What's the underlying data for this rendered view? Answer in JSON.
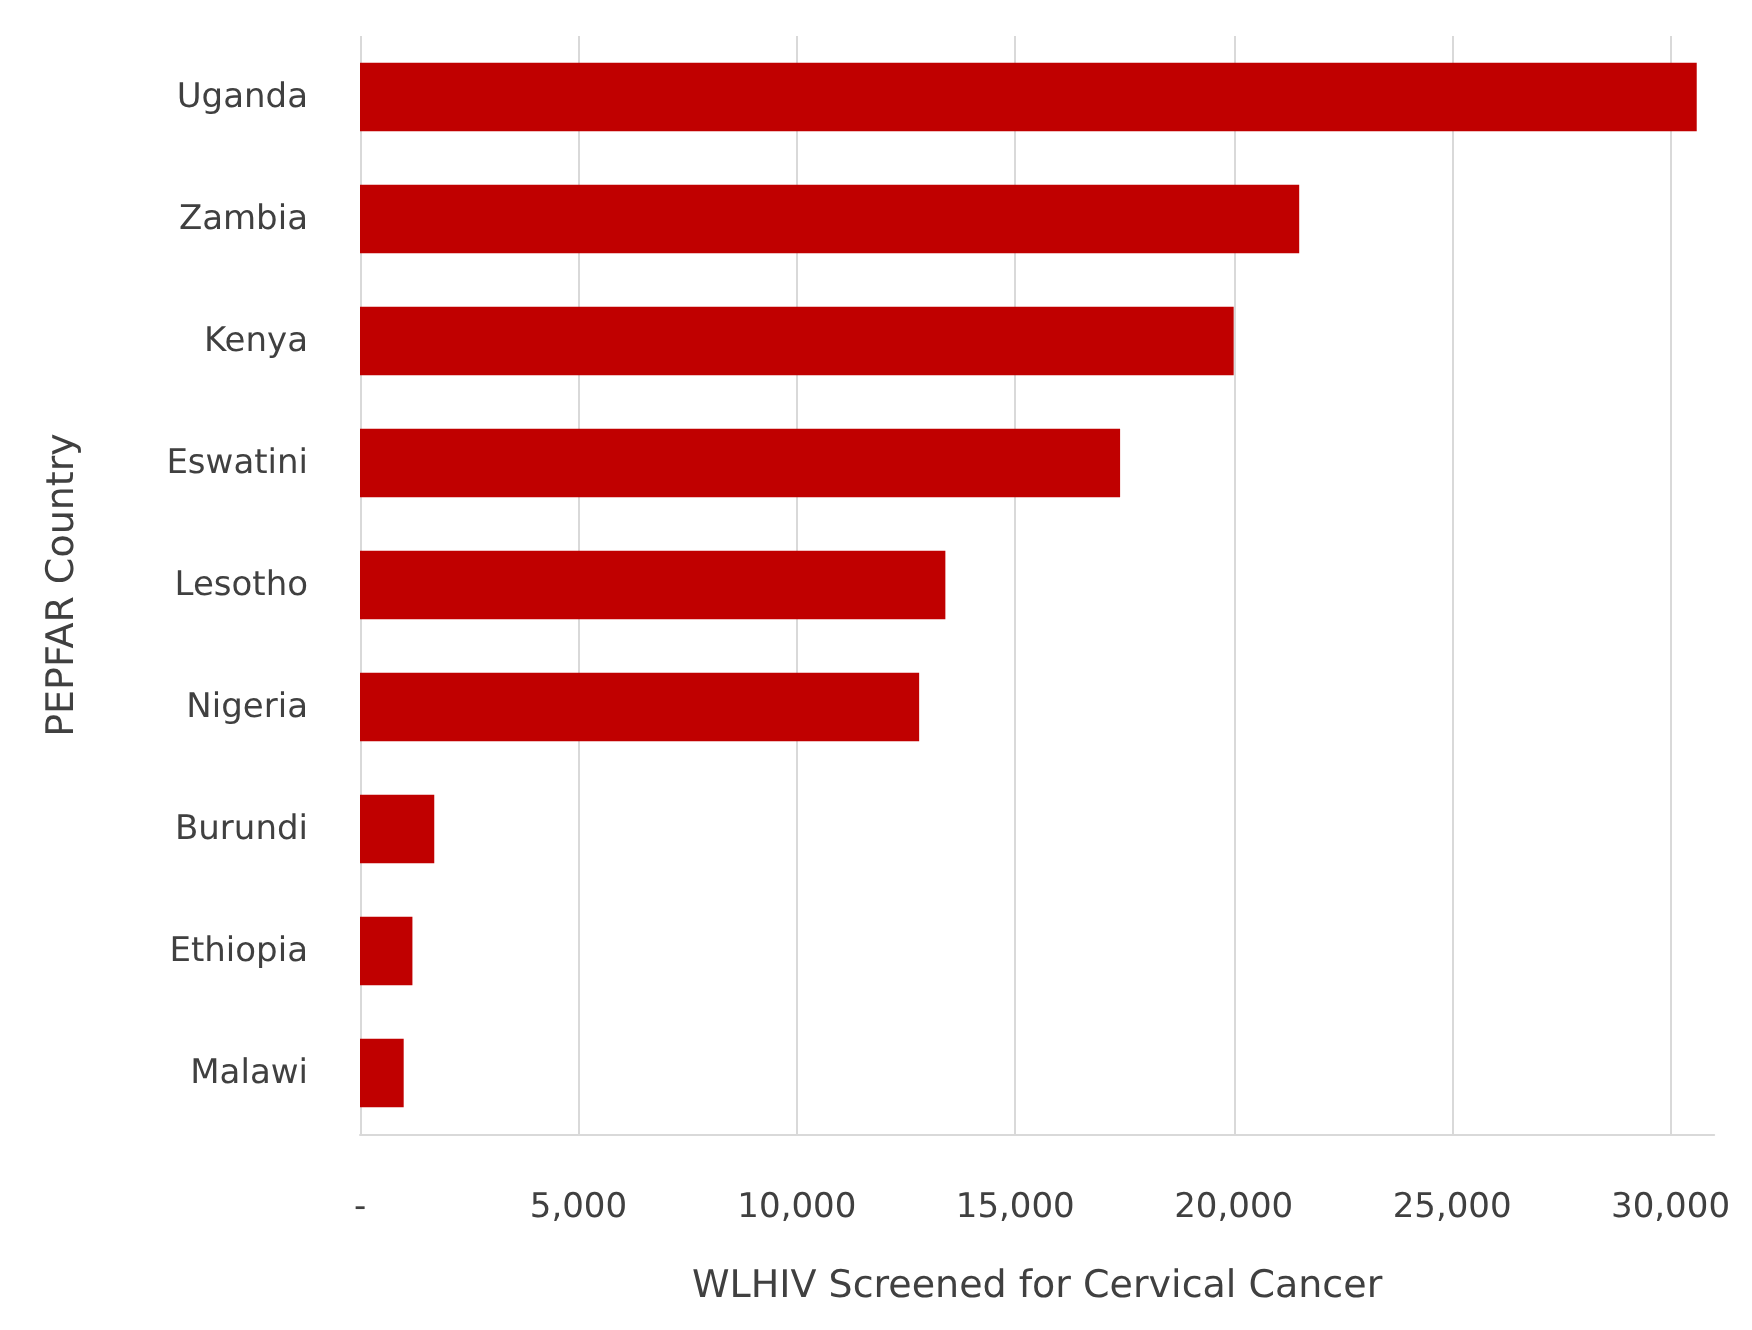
{
  "chart_data": {
    "type": "bar",
    "orientation": "horizontal",
    "xlabel": "WLHIV Screened for Cervical Cancer",
    "ylabel": "PEPFAR Country",
    "categories": [
      "Uganda",
      "Zambia",
      "Kenya",
      "Eswatini",
      "Lesotho",
      "Nigeria",
      "Burundi",
      "Ethiopia",
      "Malawi"
    ],
    "values": [
      30600,
      21500,
      20000,
      17400,
      13400,
      12800,
      1700,
      1200,
      1000
    ],
    "color": "#c00000",
    "xlim": [
      0,
      31000
    ],
    "xticks": [
      {
        "value": 0,
        "label": "-"
      },
      {
        "value": 5000,
        "label": "5,000"
      },
      {
        "value": 10000,
        "label": "10,000"
      },
      {
        "value": 15000,
        "label": "15,000"
      },
      {
        "value": 20000,
        "label": "20,000"
      },
      {
        "value": 25000,
        "label": "25,000"
      },
      {
        "value": 30000,
        "label": "30,000"
      }
    ],
    "grid": "x"
  }
}
